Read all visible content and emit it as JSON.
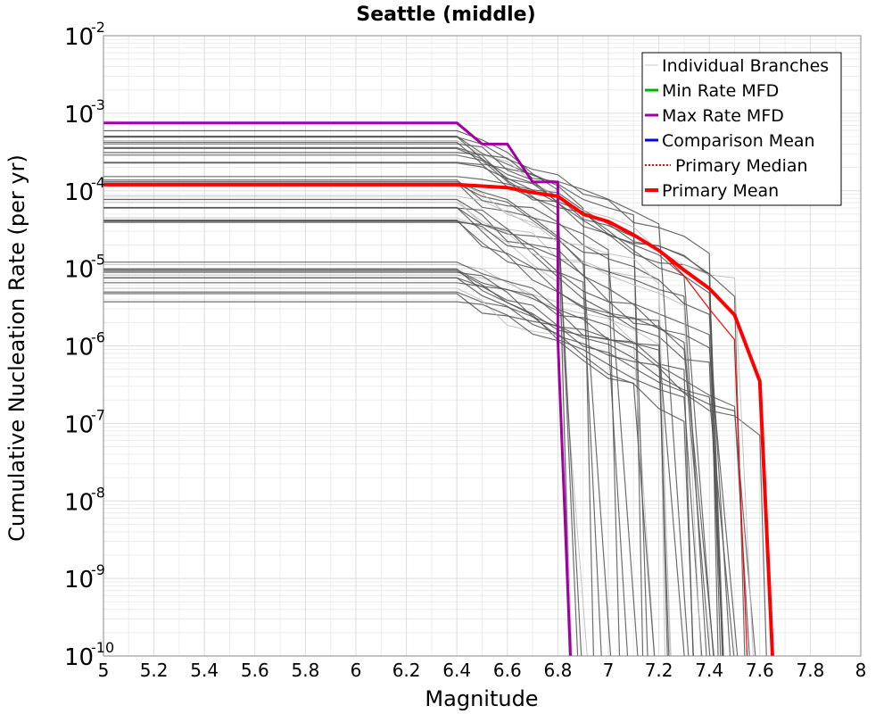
{
  "chart_data": {
    "type": "line",
    "title": "Seattle (middle)",
    "xlabel": "Magnitude",
    "ylabel": "Cumulative Nucleation Rate (per yr)",
    "xlim": [
      5,
      8
    ],
    "ylim_log10": [
      -10,
      -2
    ],
    "yscale": "log",
    "x_ticks": [
      "5",
      "5.2",
      "5.4",
      "5.6",
      "5.8",
      "6",
      "6.2",
      "6.4",
      "6.6",
      "6.8",
      "7",
      "7.2",
      "7.4",
      "7.6",
      "7.8",
      "8"
    ],
    "y_ticks": [
      {
        "base": "10",
        "exp": "-10"
      },
      {
        "base": "10",
        "exp": "-9"
      },
      {
        "base": "10",
        "exp": "-8"
      },
      {
        "base": "10",
        "exp": "-7"
      },
      {
        "base": "10",
        "exp": "-6"
      },
      {
        "base": "10",
        "exp": "-5"
      },
      {
        "base": "10",
        "exp": "-4"
      },
      {
        "base": "10",
        "exp": "-3"
      },
      {
        "base": "10",
        "exp": "-2"
      }
    ],
    "grid": true,
    "legend_position": "top-right",
    "legend": [
      {
        "label": "Individual Branches",
        "color": "#c8c8c8",
        "style": "solid-thin"
      },
      {
        "label": "Min Rate MFD",
        "color": "#00b000",
        "style": "solid"
      },
      {
        "label": "Max Rate MFD",
        "color": "#a000a0",
        "style": "solid"
      },
      {
        "label": "Comparison Mean",
        "color": "#0000e0",
        "style": "solid"
      },
      {
        "label": "Primary Median",
        "color": "#ff0000",
        "style": "dotted"
      },
      {
        "label": "Primary Mean",
        "color": "#ff0000",
        "style": "solid-thick"
      }
    ],
    "series": [
      {
        "name": "Max Rate MFD",
        "color": "#a000a0",
        "x": [
          5.0,
          6.4,
          6.5,
          6.6,
          6.7,
          6.8,
          6.8,
          6.85
        ],
        "y": [
          0.00075,
          0.00075,
          0.0004,
          0.0004,
          0.00013,
          0.00013,
          1.2e-06,
          1e-10
        ]
      },
      {
        "name": "Primary Median",
        "color": "#ff0000",
        "x": [
          5.0,
          6.4,
          6.5,
          6.6,
          6.7,
          6.8,
          6.9,
          7.0,
          7.1,
          7.2,
          7.3,
          7.4,
          7.5,
          7.5,
          7.55
        ],
        "y": [
          0.00012,
          0.00012,
          0.000115,
          0.00011,
          9.5e-05,
          8.5e-05,
          5e-05,
          4e-05,
          2.7e-05,
          1.7e-05,
          8e-06,
          3e-06,
          1.2e-06,
          1e-06,
          1e-10
        ]
      },
      {
        "name": "Primary Mean",
        "color": "#ff0000",
        "x": [
          5.0,
          6.4,
          6.5,
          6.6,
          6.7,
          6.8,
          6.9,
          7.0,
          7.1,
          7.2,
          7.3,
          7.4,
          7.5,
          7.6,
          7.65
        ],
        "y": [
          0.00012,
          0.00012,
          0.000115,
          0.00011,
          9.5e-05,
          8.5e-05,
          5e-05,
          4e-05,
          2.7e-05,
          1.7e-05,
          9.5e-06,
          5.5e-06,
          2.5e-06,
          3.5e-07,
          1e-10
        ]
      }
    ],
    "branch_band": {
      "name": "Individual Branches",
      "count": 45,
      "flat_to_magnitude": 6.4,
      "rate_range": [
        1.7e-06,
        0.0006
      ],
      "max_magnitude_range": [
        6.8,
        7.62
      ]
    }
  }
}
